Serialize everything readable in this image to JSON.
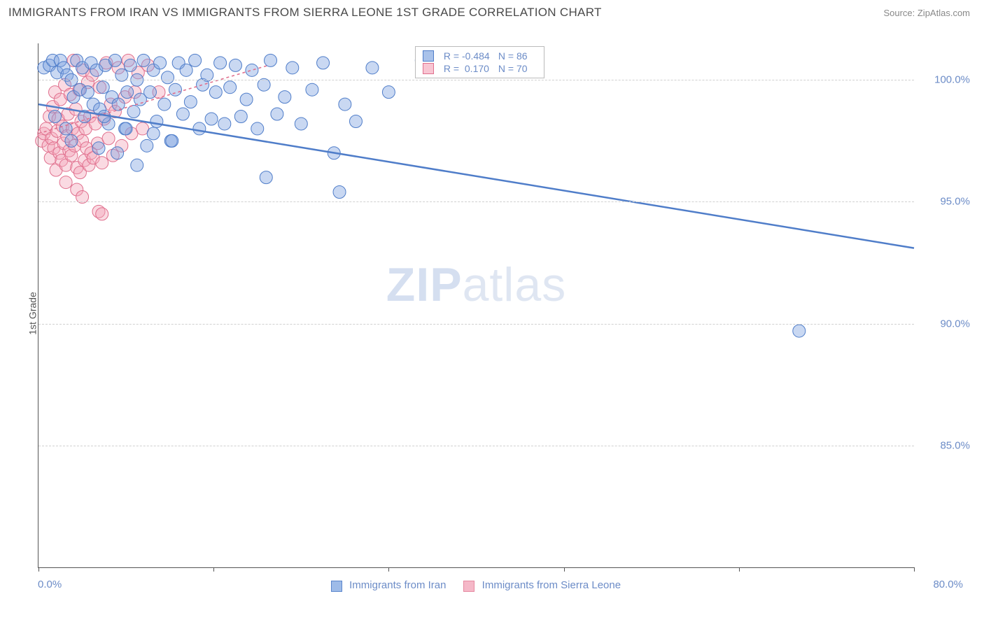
{
  "header": {
    "title": "IMMIGRANTS FROM IRAN VS IMMIGRANTS FROM SIERRA LEONE 1ST GRADE CORRELATION CHART",
    "source": "Source: ZipAtlas.com"
  },
  "chart": {
    "type": "scatter",
    "ylabel": "1st Grade",
    "xlim": [
      0,
      80
    ],
    "ylim": [
      80,
      101.5
    ],
    "xticks": [
      0,
      16,
      32,
      48,
      64,
      80
    ],
    "xtick_labels_shown": {
      "0": "0.0%",
      "80": "80.0%"
    },
    "yticks": [
      85,
      90,
      95,
      100
    ],
    "ytick_labels": [
      "85.0%",
      "90.0%",
      "95.0%",
      "100.0%"
    ],
    "grid_color": "#d0d0d0",
    "background_color": "#ffffff",
    "marker_radius": 9,
    "marker_opacity": 0.42,
    "series": [
      {
        "name": "Immigrants from Iran",
        "fill": "#7ea3e0",
        "stroke": "#4f7dc9",
        "r_value": "-0.484",
        "n_value": "86",
        "trend": {
          "x1": 0,
          "y1": 99.0,
          "x2": 80,
          "y2": 93.1,
          "width": 2.5,
          "dash": "none"
        },
        "points": [
          [
            0.5,
            100.5
          ],
          [
            1.0,
            100.6
          ],
          [
            1.3,
            100.8
          ],
          [
            1.7,
            100.3
          ],
          [
            2.0,
            100.8
          ],
          [
            2.3,
            100.5
          ],
          [
            2.6,
            100.2
          ],
          [
            3.0,
            100.0
          ],
          [
            3.2,
            99.3
          ],
          [
            3.5,
            100.8
          ],
          [
            3.8,
            99.6
          ],
          [
            4.0,
            100.5
          ],
          [
            4.2,
            98.5
          ],
          [
            4.5,
            99.5
          ],
          [
            4.8,
            100.7
          ],
          [
            5.0,
            99.0
          ],
          [
            5.3,
            100.4
          ],
          [
            5.6,
            98.8
          ],
          [
            5.9,
            99.7
          ],
          [
            6.1,
            100.6
          ],
          [
            6.4,
            98.2
          ],
          [
            6.7,
            99.3
          ],
          [
            7.0,
            100.8
          ],
          [
            7.3,
            99.0
          ],
          [
            7.6,
            100.2
          ],
          [
            7.9,
            98.0
          ],
          [
            8.1,
            99.5
          ],
          [
            8.4,
            100.6
          ],
          [
            8.7,
            98.7
          ],
          [
            9.0,
            100.0
          ],
          [
            9.3,
            99.2
          ],
          [
            9.6,
            100.8
          ],
          [
            9.9,
            97.3
          ],
          [
            10.2,
            99.5
          ],
          [
            10.5,
            100.4
          ],
          [
            10.8,
            98.3
          ],
          [
            11.1,
            100.7
          ],
          [
            11.5,
            99.0
          ],
          [
            11.8,
            100.1
          ],
          [
            12.1,
            97.5
          ],
          [
            12.5,
            99.6
          ],
          [
            12.8,
            100.7
          ],
          [
            13.2,
            98.6
          ],
          [
            13.5,
            100.4
          ],
          [
            13.9,
            99.1
          ],
          [
            14.3,
            100.8
          ],
          [
            14.7,
            98.0
          ],
          [
            15.0,
            99.8
          ],
          [
            15.4,
            100.2
          ],
          [
            15.8,
            98.4
          ],
          [
            16.2,
            99.5
          ],
          [
            16.6,
            100.7
          ],
          [
            17.0,
            98.2
          ],
          [
            17.5,
            99.7
          ],
          [
            18.0,
            100.6
          ],
          [
            18.5,
            98.5
          ],
          [
            19.0,
            99.2
          ],
          [
            19.5,
            100.4
          ],
          [
            20.0,
            98.0
          ],
          [
            20.6,
            99.8
          ],
          [
            21.2,
            100.8
          ],
          [
            21.8,
            98.6
          ],
          [
            22.5,
            99.3
          ],
          [
            23.2,
            100.5
          ],
          [
            24.0,
            98.2
          ],
          [
            25.0,
            99.6
          ],
          [
            26.0,
            100.7
          ],
          [
            27.0,
            97.0
          ],
          [
            28.0,
            99.0
          ],
          [
            29.0,
            98.3
          ],
          [
            30.5,
            100.5
          ],
          [
            32.0,
            99.5
          ],
          [
            35.0,
            100.8
          ],
          [
            20.8,
            96.0
          ],
          [
            27.5,
            95.4
          ],
          [
            69.5,
            89.7
          ],
          [
            3.0,
            97.5
          ],
          [
            5.5,
            97.2
          ],
          [
            7.2,
            97.0
          ],
          [
            9.0,
            96.5
          ],
          [
            1.5,
            98.5
          ],
          [
            2.5,
            98.0
          ],
          [
            6.0,
            98.5
          ],
          [
            8.0,
            98.0
          ],
          [
            10.5,
            97.8
          ],
          [
            12.2,
            97.5
          ]
        ]
      },
      {
        "name": "Immigrants from Sierra Leone",
        "fill": "#f4a8bb",
        "stroke": "#e06f8d",
        "r_value": "0.170",
        "n_value": "70",
        "trend": {
          "x1": 0,
          "y1": 97.8,
          "x2": 21,
          "y2": 100.6,
          "width": 1.6,
          "dash": "4,4"
        },
        "points": [
          [
            0.3,
            97.5
          ],
          [
            0.5,
            97.8
          ],
          [
            0.7,
            98.0
          ],
          [
            0.9,
            97.3
          ],
          [
            1.0,
            98.5
          ],
          [
            1.1,
            96.8
          ],
          [
            1.2,
            97.6
          ],
          [
            1.3,
            98.9
          ],
          [
            1.4,
            97.2
          ],
          [
            1.5,
            99.5
          ],
          [
            1.6,
            96.3
          ],
          [
            1.7,
            97.9
          ],
          [
            1.8,
            98.4
          ],
          [
            1.9,
            97.0
          ],
          [
            2.0,
            99.2
          ],
          [
            2.1,
            96.7
          ],
          [
            2.2,
            98.1
          ],
          [
            2.3,
            97.4
          ],
          [
            2.4,
            99.8
          ],
          [
            2.5,
            96.5
          ],
          [
            2.6,
            97.7
          ],
          [
            2.7,
            98.6
          ],
          [
            2.8,
            97.1
          ],
          [
            2.9,
            99.4
          ],
          [
            3.0,
            96.9
          ],
          [
            3.1,
            98.0
          ],
          [
            3.2,
            100.8
          ],
          [
            3.3,
            97.3
          ],
          [
            3.4,
            98.8
          ],
          [
            3.5,
            96.4
          ],
          [
            3.6,
            97.8
          ],
          [
            3.7,
            99.6
          ],
          [
            3.8,
            96.2
          ],
          [
            3.9,
            98.3
          ],
          [
            4.0,
            97.5
          ],
          [
            4.1,
            100.4
          ],
          [
            4.2,
            96.7
          ],
          [
            4.3,
            98.0
          ],
          [
            4.4,
            97.2
          ],
          [
            4.5,
            99.9
          ],
          [
            4.6,
            96.5
          ],
          [
            4.7,
            98.5
          ],
          [
            4.8,
            97.0
          ],
          [
            4.9,
            100.2
          ],
          [
            5.0,
            96.8
          ],
          [
            5.2,
            98.2
          ],
          [
            5.4,
            97.4
          ],
          [
            5.6,
            99.7
          ],
          [
            5.8,
            96.6
          ],
          [
            6.0,
            98.4
          ],
          [
            6.2,
            100.7
          ],
          [
            6.4,
            97.6
          ],
          [
            6.6,
            99.0
          ],
          [
            6.8,
            96.9
          ],
          [
            7.0,
            98.7
          ],
          [
            7.3,
            100.5
          ],
          [
            7.6,
            97.3
          ],
          [
            7.9,
            99.3
          ],
          [
            8.2,
            100.8
          ],
          [
            8.5,
            97.8
          ],
          [
            8.8,
            99.5
          ],
          [
            9.1,
            100.3
          ],
          [
            9.5,
            98.0
          ],
          [
            10.0,
            100.6
          ],
          [
            5.5,
            94.6
          ],
          [
            5.8,
            94.5
          ],
          [
            2.5,
            95.8
          ],
          [
            3.5,
            95.5
          ],
          [
            4.0,
            95.2
          ],
          [
            11.0,
            99.5
          ]
        ]
      }
    ],
    "bottom_legend": [
      {
        "label": "Immigrants from Iran",
        "fill": "#9ebbe8",
        "stroke": "#5a85cc"
      },
      {
        "label": "Immigrants from Sierra Leone",
        "fill": "#f5b8c8",
        "stroke": "#e688a0"
      }
    ],
    "watermark": {
      "zip": "ZIP",
      "atlas": "atlas"
    }
  }
}
